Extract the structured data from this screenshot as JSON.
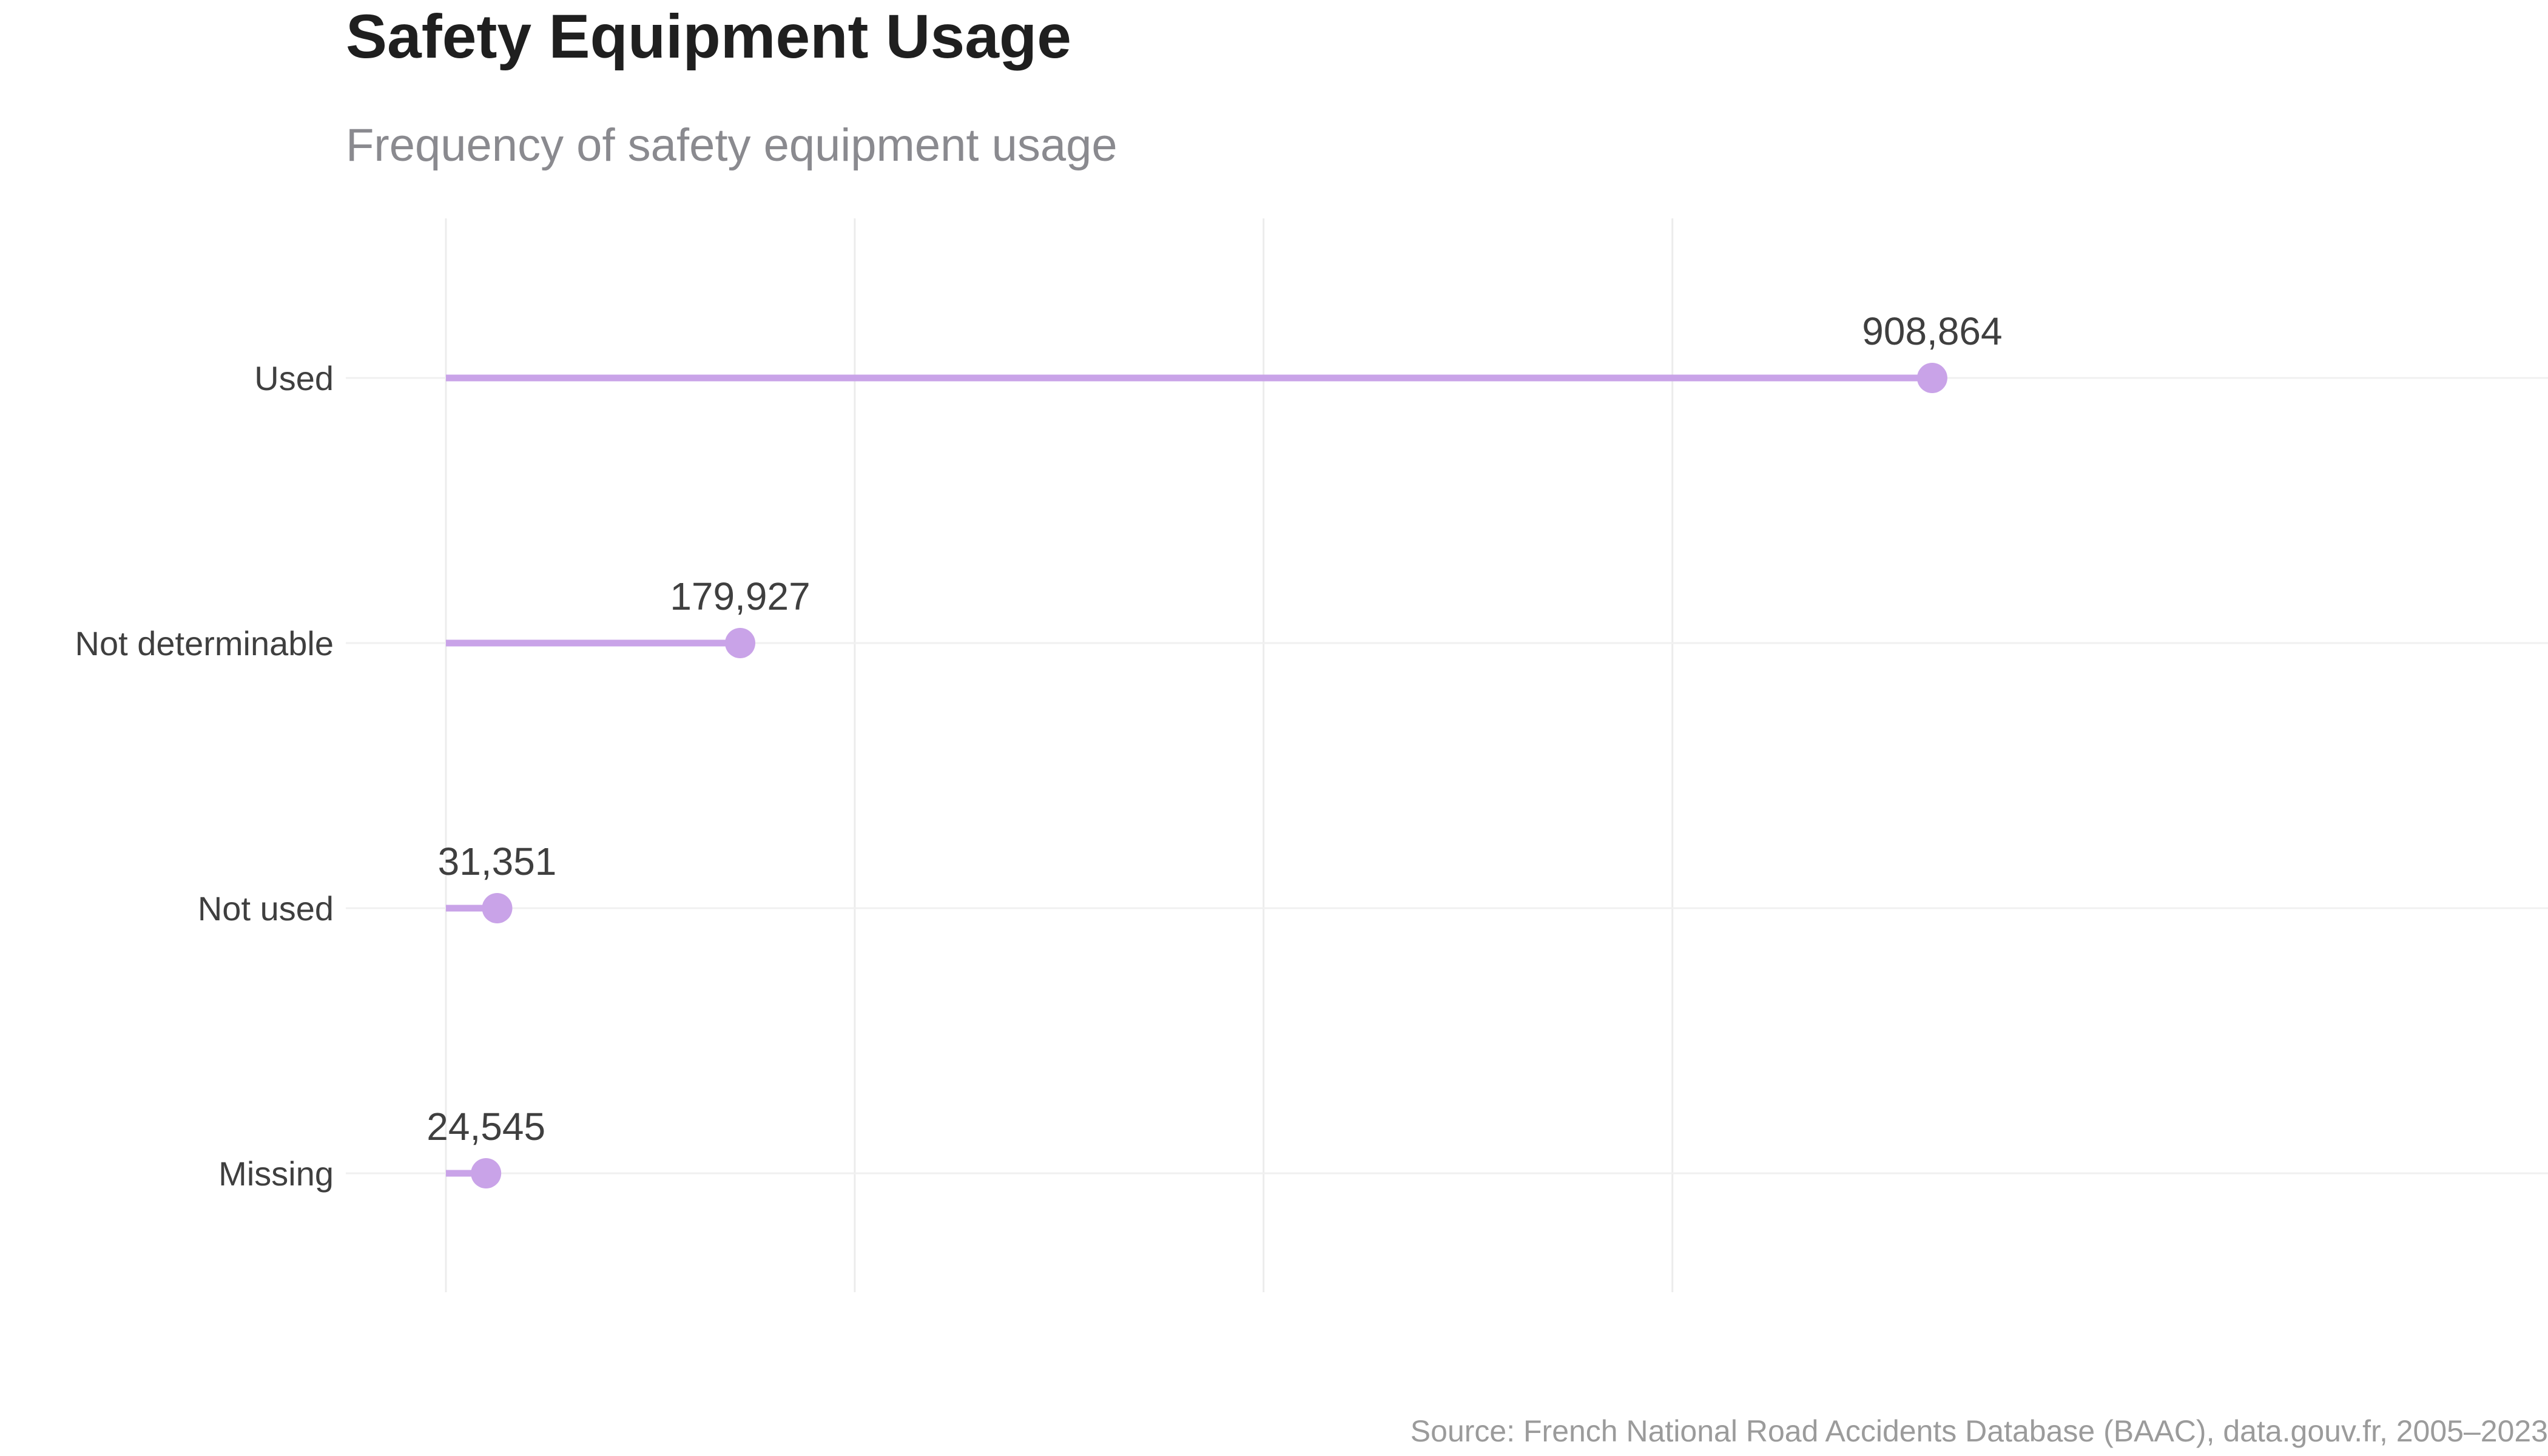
{
  "chart_data": {
    "type": "lollipop",
    "title": "Safety Equipment Usage",
    "subtitle": "Frequency of safety equipment usage",
    "categories": [
      "Used",
      "Not determinable",
      "Not used",
      "Missing"
    ],
    "values": [
      908864,
      179927,
      31351,
      24545
    ],
    "value_labels": [
      "908,864",
      "179,927",
      "31,351",
      "24,545"
    ],
    "xlim": [
      0,
      950000
    ],
    "grid": true,
    "color": "#c9a3e8",
    "source": "Source: French National Road Accidents Database (BAAC), data.gouv.fr, 2005–2023"
  }
}
